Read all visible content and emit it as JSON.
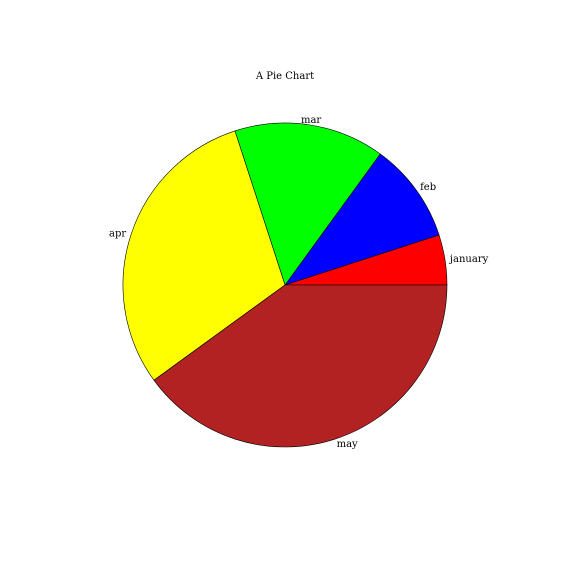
{
  "chart_data": {
    "type": "pie",
    "title": "A Pie Chart",
    "categories": [
      "january",
      "feb",
      "mar",
      "apr",
      "may"
    ],
    "values": [
      5,
      10,
      15,
      30,
      40
    ],
    "colors": [
      "#ff0000",
      "#0000ff",
      "#00ff00",
      "#ffff00",
      "#b22222"
    ],
    "start_angle_deg": 0,
    "direction": "counterclockwise",
    "legend": "none"
  }
}
